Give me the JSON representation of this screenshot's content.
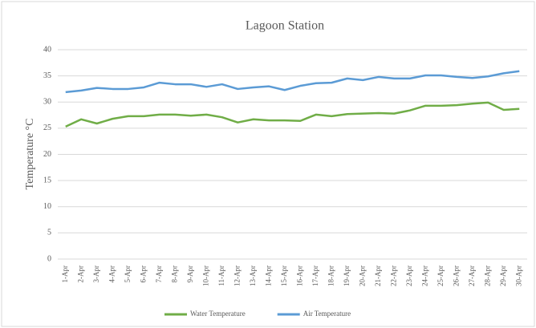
{
  "chart_data": {
    "type": "line",
    "title": "Lagoon Station",
    "y_label": "Temperature °C",
    "categories": [
      "1-Apr",
      "2-Apr",
      "3-Apr",
      "4-Apr",
      "5-Apr",
      "6-Apr",
      "7-Apr",
      "8-Apr",
      "9-Apr",
      "10-Apr",
      "11-Apr",
      "12-Apr",
      "13-Apr",
      "14-Apr",
      "15-Apr",
      "16-Apr",
      "17-Apr",
      "18-Apr",
      "19-Apr",
      "20-Apr",
      "21-Apr",
      "22-Apr",
      "23-Apr",
      "24-Apr",
      "25-Apr",
      "26-Apr",
      "27-Apr",
      "28-Apr",
      "29-Apr",
      "30-Apr"
    ],
    "series": [
      {
        "name": "Water Temperature",
        "color": "#70ad47",
        "values": [
          25.3,
          26.7,
          25.9,
          26.8,
          27.3,
          27.3,
          27.6,
          27.6,
          27.4,
          27.6,
          27.1,
          26.1,
          26.7,
          26.5,
          26.5,
          26.4,
          27.6,
          27.3,
          27.7,
          27.8,
          27.9,
          27.8,
          28.4,
          29.3,
          29.3,
          29.4,
          29.7,
          29.9,
          28.5,
          28.7
        ]
      },
      {
        "name": "Air Temperature",
        "color": "#5b9bd5",
        "values": [
          31.9,
          32.2,
          32.7,
          32.5,
          32.5,
          32.8,
          33.7,
          33.4,
          33.4,
          32.9,
          33.4,
          32.5,
          32.8,
          33.0,
          32.3,
          33.1,
          33.6,
          33.7,
          34.5,
          34.2,
          34.8,
          34.5,
          34.5,
          35.1,
          35.1,
          34.8,
          34.6,
          34.9,
          35.5,
          35.9
        ]
      }
    ],
    "ylim": [
      0,
      40
    ],
    "yticks": [
      0,
      5,
      10,
      15,
      20,
      25,
      30,
      35,
      40
    ],
    "grid": true,
    "legend": "bottom"
  }
}
